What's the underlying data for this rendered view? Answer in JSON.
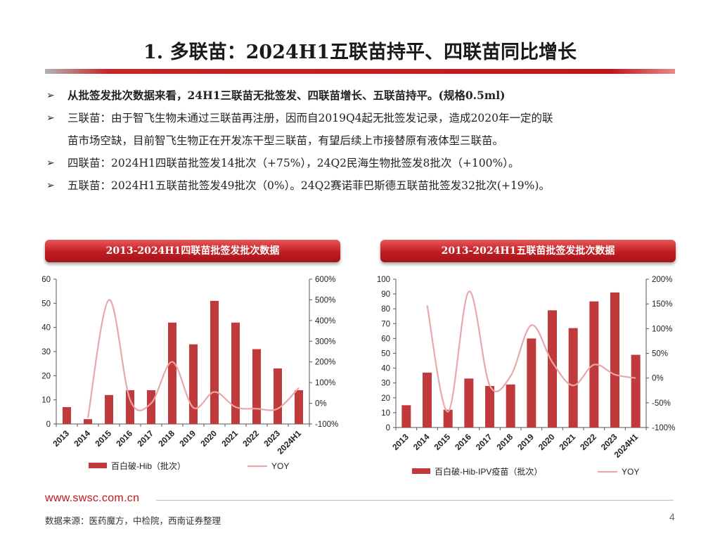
{
  "title": "1. 多联苗：2024H1五联苗持平、四联苗同比增长",
  "bullets": [
    "从批签发批次数据来看，24H1三联苗无批签发、四联苗增长、五联苗持平。(规格0.5ml)",
    "三联苗：由于智飞生物未通过三联苗再注册，因而自2019Q4起无批签发记录，造成2020年一定的联",
    "苗市场空缺，目前智飞生物正在开发冻干型三联苗，有望后续上市接替原有液体型三联苗。",
    "四联苗：2024H1四联苗批签发14批次（+75%），24Q2民海生物批签发8批次（+100%）。",
    "五联苗：2024H1五联苗批签发49批次（0%）。24Q2赛诺菲巴斯德五联苗批签发32批次(+19%)。"
  ],
  "bullet_marker": "➢",
  "colors": {
    "bar": "#c0393b",
    "line": "#e8a7ab",
    "brand": "#c0161c"
  },
  "chart_data": [
    {
      "type": "bar",
      "title": "2013-2024H1四联苗批签发批次数据",
      "categories": [
        "2013",
        "2014",
        "2015",
        "2016",
        "2017",
        "2018",
        "2019",
        "2020",
        "2021",
        "2022",
        "2023",
        "2024H1"
      ],
      "series": [
        {
          "name": "百白破-Hib（批次）",
          "type": "bar",
          "axis": "left",
          "values": [
            7,
            2,
            12,
            14,
            14,
            42,
            33,
            51,
            42,
            31,
            23,
            14
          ]
        },
        {
          "name": "YOY",
          "type": "line",
          "axis": "right",
          "smooth": true,
          "values": [
            null,
            -71,
            500,
            17,
            0,
            200,
            -21,
            55,
            -18,
            -26,
            -26,
            75
          ]
        }
      ],
      "y_left": {
        "min": 0,
        "max": 60,
        "ticks": [
          0,
          10,
          20,
          30,
          40,
          50,
          60
        ]
      },
      "y_right": {
        "min": -100,
        "max": 600,
        "ticks": [
          -100,
          0,
          100,
          200,
          300,
          400,
          500,
          600
        ],
        "tick_labels": [
          "-100%",
          "0%",
          "100%",
          "200%",
          "300%",
          "400%",
          "500%",
          "600%"
        ]
      },
      "legend": [
        "百白破-Hib（批次）",
        "YOY"
      ],
      "legend_position": "bottom"
    },
    {
      "type": "bar",
      "title": "2013-2024H1五联苗批签发批次数据",
      "categories": [
        "2013",
        "2014",
        "2015",
        "2016",
        "2017",
        "2018",
        "2019",
        "2020",
        "2021",
        "2022",
        "2023",
        "2024H1"
      ],
      "series": [
        {
          "name": "百白破-Hib-IPV疫苗（批次）",
          "type": "bar",
          "axis": "left",
          "values": [
            15,
            37,
            12,
            33,
            28,
            29,
            60,
            79,
            67,
            85,
            91,
            49
          ]
        },
        {
          "name": "YOY",
          "type": "line",
          "axis": "right",
          "smooth": true,
          "values": [
            null,
            147,
            -68,
            175,
            -15,
            4,
            107,
            32,
            -15,
            27,
            7,
            0
          ]
        }
      ],
      "y_left": {
        "min": 0,
        "max": 100,
        "ticks": [
          0,
          10,
          20,
          30,
          40,
          50,
          60,
          70,
          80,
          90,
          100
        ]
      },
      "y_right": {
        "min": -100,
        "max": 200,
        "ticks": [
          -100,
          -50,
          0,
          50,
          100,
          150,
          200
        ],
        "tick_labels": [
          "-100%",
          "-50%",
          "0%",
          "50%",
          "100%",
          "150%",
          "200%"
        ]
      },
      "legend": [
        "百白破-Hib-IPV疫苗（批次）",
        "YOY"
      ],
      "legend_position": "bottom"
    }
  ],
  "footer": {
    "url": "www.swsc.com.cn",
    "source": "数据来源：医药魔方，中检院，西南证券整理",
    "page": "4"
  }
}
